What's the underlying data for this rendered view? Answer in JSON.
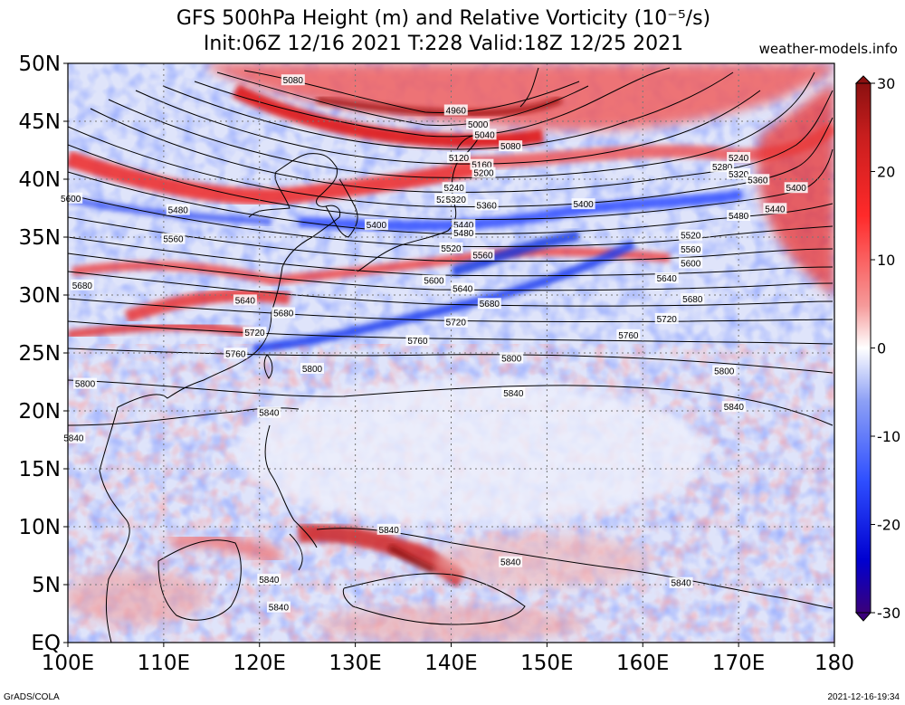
{
  "title_line1": "GFS 500hPa Height (m) and Relative Vorticity (10⁻⁵/s)",
  "title_line2": "Init:06Z 12/16 2021 T:228 Valid:18Z 12/25 2021",
  "source": "weather-models.info",
  "footer_left": "GrADS/COLA",
  "footer_right": "2021-12-16-19:34",
  "map": {
    "lon_range": [
      100,
      180
    ],
    "lat_range": [
      0,
      50
    ],
    "lon_ticks": [
      "100E",
      "110E",
      "120E",
      "130E",
      "140E",
      "150E",
      "160E",
      "170E",
      "180"
    ],
    "lat_ticks": [
      "EQ",
      "5N",
      "10N",
      "15N",
      "20N",
      "25N",
      "30N",
      "35N",
      "40N",
      "45N",
      "50N"
    ]
  },
  "colorbar": {
    "range": [
      -30,
      30
    ],
    "tick_labels": [
      "30",
      "20",
      "10",
      "0",
      "-10",
      "-20",
      "-30"
    ],
    "colors": [
      "#3a007a",
      "#0000d0",
      "#2f4fff",
      "#8da0f5",
      "#ffffff",
      "#f59a9a",
      "#ff2a2a",
      "#c81e1e",
      "#8b1010"
    ]
  },
  "contour_labels": [
    {
      "text": "5080",
      "lon": 123.5,
      "lat": 48.5
    },
    {
      "text": "4960",
      "lon": 140.5,
      "lat": 45.9
    },
    {
      "text": "5000",
      "lon": 142.8,
      "lat": 44.7
    },
    {
      "text": "5040",
      "lon": 143.5,
      "lat": 43.8
    },
    {
      "text": "5080",
      "lon": 146.2,
      "lat": 42.8
    },
    {
      "text": "5120",
      "lon": 140.8,
      "lat": 41.8
    },
    {
      "text": "5160",
      "lon": 143.2,
      "lat": 41.2
    },
    {
      "text": "5200",
      "lon": 143.4,
      "lat": 40.5
    },
    {
      "text": "5240",
      "lon": 170.0,
      "lat": 41.8
    },
    {
      "text": "5280",
      "lon": 168.3,
      "lat": 41.0
    },
    {
      "text": "5320",
      "lon": 170.0,
      "lat": 40.4
    },
    {
      "text": "5360",
      "lon": 172.0,
      "lat": 39.9
    },
    {
      "text": "5400",
      "lon": 176.0,
      "lat": 39.2
    },
    {
      "text": "5440",
      "lon": 173.8,
      "lat": 37.4
    },
    {
      "text": "5480",
      "lon": 170.0,
      "lat": 36.8
    },
    {
      "text": "5240",
      "lon": 140.3,
      "lat": 39.2
    },
    {
      "text": "5280",
      "lon": 139.5,
      "lat": 38.2
    },
    {
      "text": "5320",
      "lon": 140.5,
      "lat": 38.2
    },
    {
      "text": "5360",
      "lon": 143.7,
      "lat": 37.7
    },
    {
      "text": "5400",
      "lon": 153.8,
      "lat": 37.8
    },
    {
      "text": "5400",
      "lon": 132.2,
      "lat": 36.0
    },
    {
      "text": "5440",
      "lon": 141.3,
      "lat": 36.0
    },
    {
      "text": "5480",
      "lon": 141.3,
      "lat": 35.3
    },
    {
      "text": "5480",
      "lon": 111.5,
      "lat": 37.3
    },
    {
      "text": "5560",
      "lon": 111.0,
      "lat": 34.8
    },
    {
      "text": "5520",
      "lon": 140.0,
      "lat": 34.0
    },
    {
      "text": "5560",
      "lon": 143.3,
      "lat": 33.4
    },
    {
      "text": "5520",
      "lon": 165.0,
      "lat": 35.1
    },
    {
      "text": "5560",
      "lon": 165.0,
      "lat": 33.9
    },
    {
      "text": "5600",
      "lon": 165.0,
      "lat": 32.7
    },
    {
      "text": "5600",
      "lon": 100.3,
      "lat": 38.3
    },
    {
      "text": "5600",
      "lon": 138.2,
      "lat": 31.2
    },
    {
      "text": "5640",
      "lon": 162.5,
      "lat": 31.4
    },
    {
      "text": "5640",
      "lon": 141.2,
      "lat": 30.5
    },
    {
      "text": "5680",
      "lon": 144.0,
      "lat": 29.2
    },
    {
      "text": "5680",
      "lon": 165.2,
      "lat": 29.6
    },
    {
      "text": "5720",
      "lon": 162.5,
      "lat": 27.9
    },
    {
      "text": "5720",
      "lon": 140.5,
      "lat": 27.6
    },
    {
      "text": "5760",
      "lon": 158.5,
      "lat": 26.5
    },
    {
      "text": "5760",
      "lon": 136.5,
      "lat": 26.0
    },
    {
      "text": "5800",
      "lon": 146.3,
      "lat": 24.5
    },
    {
      "text": "5800",
      "lon": 168.5,
      "lat": 23.4
    },
    {
      "text": "5840",
      "lon": 146.5,
      "lat": 21.5
    },
    {
      "text": "5840",
      "lon": 169.5,
      "lat": 20.3
    },
    {
      "text": "5680",
      "lon": 101.5,
      "lat": 30.8
    },
    {
      "text": "5640",
      "lon": 118.5,
      "lat": 29.5
    },
    {
      "text": "5680",
      "lon": 122.5,
      "lat": 28.4
    },
    {
      "text": "5720",
      "lon": 119.5,
      "lat": 26.7
    },
    {
      "text": "5760",
      "lon": 117.5,
      "lat": 24.9
    },
    {
      "text": "5800",
      "lon": 101.8,
      "lat": 22.3
    },
    {
      "text": "5800",
      "lon": 125.5,
      "lat": 23.6
    },
    {
      "text": "5840",
      "lon": 121.0,
      "lat": 19.8
    },
    {
      "text": "5840",
      "lon": 100.6,
      "lat": 17.6
    },
    {
      "text": "5840",
      "lon": 133.5,
      "lat": 9.7
    },
    {
      "text": "5840",
      "lon": 146.2,
      "lat": 6.9
    },
    {
      "text": "5840",
      "lon": 164.0,
      "lat": 5.1
    },
    {
      "text": "5840",
      "lon": 121.0,
      "lat": 5.4
    },
    {
      "text": "5840",
      "lon": 122.0,
      "lat": 3.0
    }
  ]
}
